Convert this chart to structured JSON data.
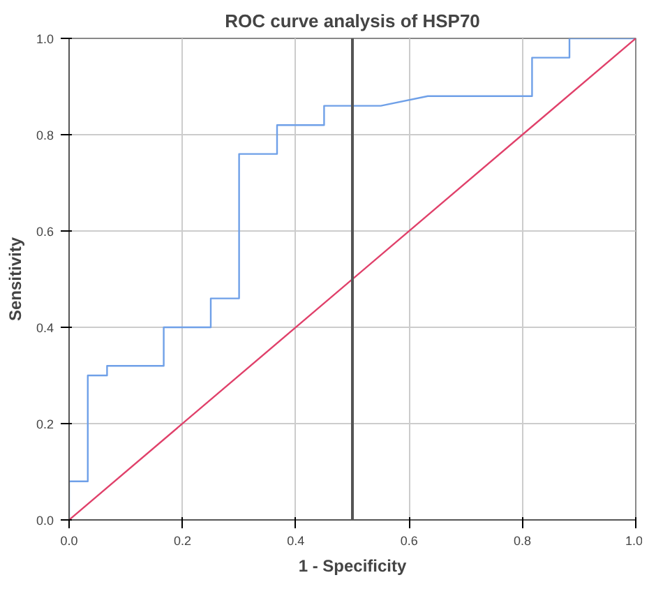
{
  "chart_data": {
    "type": "line",
    "title": "ROC curve analysis of HSP70",
    "xlabel": "1 - Specificity",
    "ylabel": "Sensitivity",
    "xlim": [
      0,
      1
    ],
    "ylim": [
      0,
      1
    ],
    "xticks": [
      {
        "value": 0,
        "label": "0.0"
      },
      {
        "value": 0.2,
        "label": "0.2"
      },
      {
        "value": 0.4,
        "label": "0.4"
      },
      {
        "value": 0.6,
        "label": "0.6"
      },
      {
        "value": 0.8,
        "label": "0.8"
      },
      {
        "value": 1,
        "label": "1.0"
      }
    ],
    "yticks": [
      {
        "value": 0,
        "label": "0.0"
      },
      {
        "value": 0.2,
        "label": "0.2"
      },
      {
        "value": 0.4,
        "label": "0.4"
      },
      {
        "value": 0.6,
        "label": "0.6"
      },
      {
        "value": 0.8,
        "label": "0.8"
      },
      {
        "value": 1,
        "label": "1.0"
      }
    ],
    "grid": true,
    "series": [
      {
        "color": "#6fa0e8",
        "x": [
          0,
          0,
          0.033,
          0.033,
          0.067,
          0.067,
          0.167,
          0.167,
          0.25,
          0.25,
          0.3,
          0.3,
          0.367,
          0.367,
          0.45,
          0.45,
          0.55,
          0.633,
          0.817,
          0.817,
          0.883,
          0.883,
          1
        ],
        "values": [
          0,
          0.08,
          0.08,
          0.3,
          0.3,
          0.32,
          0.32,
          0.4,
          0.4,
          0.46,
          0.46,
          0.76,
          0.76,
          0.82,
          0.82,
          0.86,
          0.86,
          0.88,
          0.88,
          0.96,
          0.96,
          1,
          1
        ]
      },
      {
        "color": "#e0406a",
        "x": [
          0,
          1
        ],
        "values": [
          0,
          1
        ]
      }
    ],
    "ref_lines": [
      {
        "axis": "x",
        "value": 0.5,
        "color": "#555555"
      }
    ]
  }
}
